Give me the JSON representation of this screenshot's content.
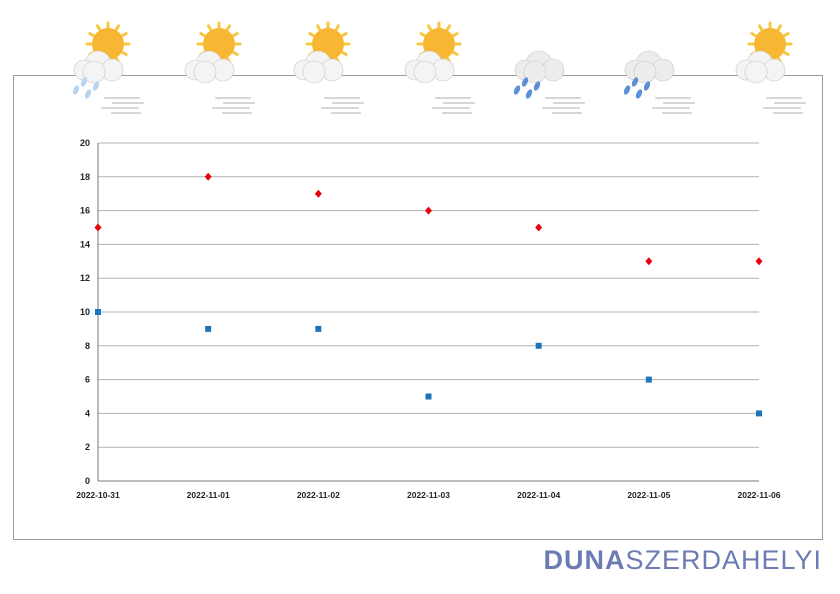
{
  "chart_data": {
    "type": "scatter",
    "x": [
      "2022-10-31",
      "2022-11-01",
      "2022-11-02",
      "2022-11-03",
      "2022-11-04",
      "2022-11-05",
      "2022-11-06"
    ],
    "series": [
      {
        "values": [
          15,
          18,
          17,
          16,
          15,
          13,
          13
        ],
        "color": "#e8000b",
        "marker": "diamond"
      },
      {
        "values": [
          10,
          9,
          9,
          5,
          8,
          6,
          4
        ],
        "color": "#1f74b8",
        "marker": "square"
      }
    ],
    "ylim": [
      0,
      20
    ],
    "yticks": [
      0,
      2,
      4,
      6,
      8,
      10,
      12,
      14,
      16,
      18,
      20
    ],
    "grid": true,
    "weather_icons": [
      "sun-cloud-rain-icon",
      "sun-cloud-icon",
      "sun-cloud-icon",
      "sun-cloud-icon",
      "cloud-rain-icon",
      "cloud-rain-icon",
      "sun-cloud-icon"
    ]
  },
  "brand": {
    "part1": "DUNA",
    "part2": "SZERDAHELYI"
  }
}
